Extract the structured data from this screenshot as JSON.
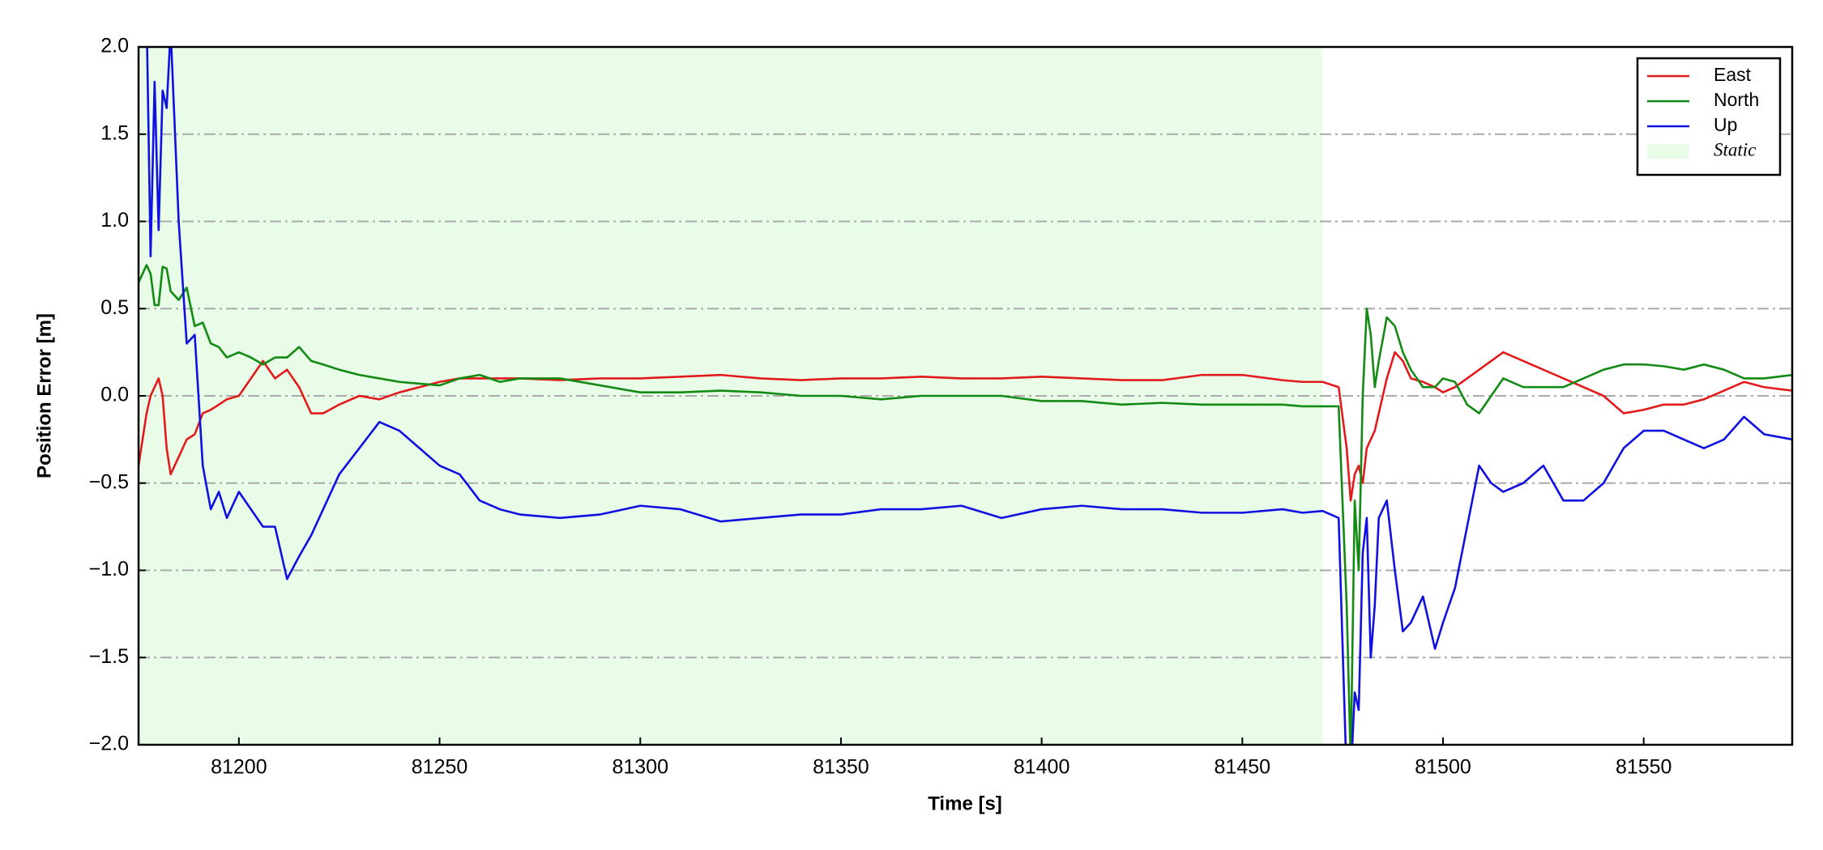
{
  "chart_data": {
    "type": "line",
    "xlabel": "Time [s]",
    "ylabel": "Position Error [m]",
    "xlim": [
      81175,
      81587
    ],
    "ylim": [
      -2.0,
      2.0
    ],
    "xticks": [
      81200,
      81250,
      81300,
      81350,
      81400,
      81450,
      81500,
      81550
    ],
    "yticks": [
      {
        "value": -2.0,
        "label": "−2.0"
      },
      {
        "value": -1.5,
        "label": "−1.5"
      },
      {
        "value": -1.0,
        "label": "−1.0"
      },
      {
        "value": -0.5,
        "label": "−0.5"
      },
      {
        "value": 0.0,
        "label": "0.0"
      },
      {
        "value": 0.5,
        "label": "0.5"
      },
      {
        "value": 1.0,
        "label": "1.0"
      },
      {
        "value": 1.5,
        "label": "1.5"
      },
      {
        "value": 2.0,
        "label": "2.0"
      }
    ],
    "grid": true,
    "legend": "upper right",
    "static_span": [
      81175,
      81470
    ],
    "static_label": "Static",
    "static_color": "#e8fce8",
    "x": [
      81175,
      81177,
      81178,
      81179,
      81180,
      81181,
      81182,
      81183,
      81185,
      81187,
      81189,
      81191,
      81193,
      81195,
      81197,
      81200,
      81203,
      81206,
      81209,
      81212,
      81215,
      81218,
      81221,
      81225,
      81230,
      81235,
      81240,
      81245,
      81250,
      81255,
      81260,
      81265,
      81270,
      81280,
      81290,
      81300,
      81310,
      81320,
      81330,
      81340,
      81350,
      81360,
      81370,
      81380,
      81390,
      81400,
      81410,
      81420,
      81430,
      81440,
      81450,
      81460,
      81465,
      81470,
      81474,
      81476,
      81477,
      81478,
      81479,
      81480,
      81481,
      81482,
      81483,
      81484,
      81486,
      81488,
      81490,
      81492,
      81495,
      81498,
      81500,
      81503,
      81506,
      81509,
      81512,
      81515,
      81520,
      81525,
      81530,
      81535,
      81540,
      81545,
      81550,
      81555,
      81560,
      81565,
      81570,
      81575,
      81580,
      81587
    ],
    "series": [
      {
        "name": "East",
        "color": "#e31a1c",
        "values": [
          -0.4,
          -0.1,
          0.0,
          0.05,
          0.1,
          0.0,
          -0.3,
          -0.45,
          -0.35,
          -0.25,
          -0.22,
          -0.1,
          -0.08,
          -0.05,
          -0.02,
          0.0,
          0.1,
          0.2,
          0.1,
          0.15,
          0.05,
          -0.1,
          -0.1,
          -0.05,
          0.0,
          -0.02,
          0.02,
          0.05,
          0.08,
          0.1,
          0.1,
          0.1,
          0.1,
          0.09,
          0.1,
          0.1,
          0.11,
          0.12,
          0.1,
          0.09,
          0.1,
          0.1,
          0.11,
          0.1,
          0.1,
          0.11,
          0.1,
          0.09,
          0.09,
          0.12,
          0.12,
          0.09,
          0.08,
          0.08,
          0.05,
          -0.3,
          -0.6,
          -0.45,
          -0.4,
          -0.5,
          -0.3,
          -0.25,
          -0.2,
          -0.1,
          0.1,
          0.25,
          0.2,
          0.1,
          0.08,
          0.05,
          0.02,
          0.05,
          0.1,
          0.15,
          0.2,
          0.25,
          0.2,
          0.15,
          0.1,
          0.05,
          0.0,
          -0.1,
          -0.08,
          -0.05,
          -0.05,
          -0.02,
          0.03,
          0.08,
          0.05,
          0.03
        ]
      },
      {
        "name": "North",
        "color": "#138a13",
        "values": [
          0.65,
          0.75,
          0.7,
          0.52,
          0.52,
          0.74,
          0.73,
          0.6,
          0.55,
          0.62,
          0.4,
          0.42,
          0.3,
          0.28,
          0.22,
          0.25,
          0.22,
          0.18,
          0.22,
          0.22,
          0.28,
          0.2,
          0.18,
          0.15,
          0.12,
          0.1,
          0.08,
          0.07,
          0.06,
          0.1,
          0.12,
          0.08,
          0.1,
          0.1,
          0.06,
          0.02,
          0.02,
          0.03,
          0.02,
          0.0,
          0.0,
          -0.02,
          0.0,
          0.0,
          0.0,
          -0.03,
          -0.03,
          -0.05,
          -0.04,
          -0.05,
          -0.05,
          -0.05,
          -0.06,
          -0.06,
          -0.06,
          -1.2,
          -2.1,
          -0.6,
          -1.0,
          0.0,
          0.5,
          0.35,
          0.05,
          0.2,
          0.45,
          0.4,
          0.25,
          0.15,
          0.05,
          0.05,
          0.1,
          0.08,
          -0.05,
          -0.1,
          0.0,
          0.1,
          0.05,
          0.05,
          0.05,
          0.1,
          0.15,
          0.18,
          0.18,
          0.17,
          0.15,
          0.18,
          0.15,
          0.1,
          0.1,
          0.12
        ]
      },
      {
        "name": "Up",
        "color": "#1010e0",
        "values": [
          2.3,
          2.2,
          0.8,
          1.8,
          0.95,
          1.75,
          1.65,
          2.1,
          1.0,
          0.3,
          0.35,
          -0.4,
          -0.65,
          -0.55,
          -0.7,
          -0.55,
          -0.65,
          -0.75,
          -0.75,
          -1.05,
          -0.92,
          -0.8,
          -0.65,
          -0.45,
          -0.3,
          -0.15,
          -0.2,
          -0.3,
          -0.4,
          -0.45,
          -0.6,
          -0.65,
          -0.68,
          -0.7,
          -0.68,
          -0.63,
          -0.65,
          -0.72,
          -0.7,
          -0.68,
          -0.68,
          -0.65,
          -0.65,
          -0.63,
          -0.7,
          -0.65,
          -0.63,
          -0.65,
          -0.65,
          -0.67,
          -0.67,
          -0.65,
          -0.67,
          -0.66,
          -0.7,
          -2.2,
          -2.2,
          -1.7,
          -1.8,
          -0.9,
          -0.7,
          -1.5,
          -1.2,
          -0.7,
          -0.6,
          -1.0,
          -1.35,
          -1.3,
          -1.15,
          -1.45,
          -1.3,
          -1.1,
          -0.75,
          -0.4,
          -0.5,
          -0.55,
          -0.5,
          -0.4,
          -0.6,
          -0.6,
          -0.5,
          -0.3,
          -0.2,
          -0.2,
          -0.25,
          -0.3,
          -0.25,
          -0.12,
          -0.22,
          -0.25
        ]
      }
    ]
  }
}
